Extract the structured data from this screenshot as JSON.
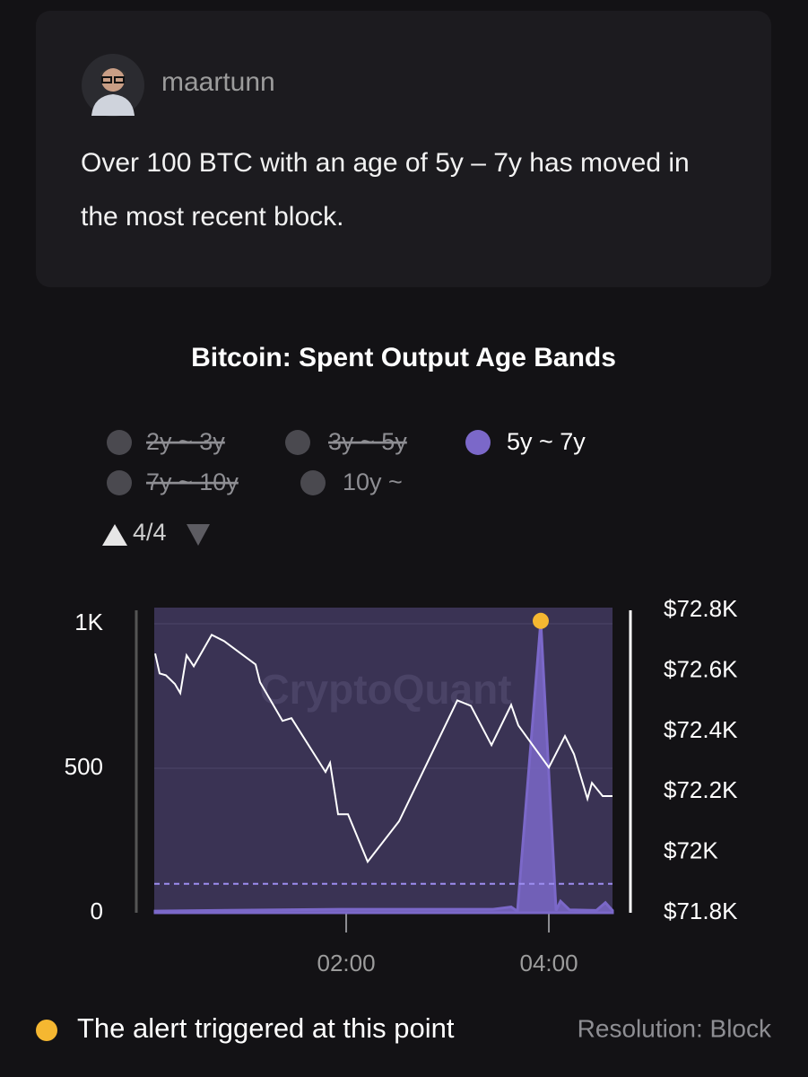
{
  "post": {
    "author": "maartunn",
    "text": "Over 100 BTC with an age of 5y – 7y has moved in the most recent block."
  },
  "chart_data": {
    "type": "area",
    "title": "Bitcoin: Spent Output Age Bands",
    "hidden_series": [
      "2y ~ 3y",
      "3y ~ 5y",
      "7y ~ 10y",
      "10y ~"
    ],
    "pager": "4/4",
    "watermark": "CryptoQuant",
    "series": [
      {
        "name": "5y ~ 7y",
        "color": "#7b68c9",
        "x": [
          0.115,
          1.947,
          3.451,
          3.628,
          3.69,
          3.92,
          4.071,
          4.115,
          4.204,
          4.469,
          4.558,
          4.628
        ],
        "values": [
          6,
          12,
          12,
          20,
          5,
          1010,
          8,
          40,
          10,
          8,
          35,
          8
        ]
      }
    ],
    "price_line": {
      "axis": "y2",
      "color": "#ffffff",
      "x": [
        0.115,
        0.159,
        0.221,
        0.31,
        0.363,
        0.425,
        0.496,
        0.673,
        0.796,
        1.106,
        1.15,
        1.372,
        1.46,
        1.796,
        1.841,
        1.92,
        2.018,
        2.212,
        2.522,
        3.097,
        3.23,
        3.434,
        3.628,
        3.699,
        4.0,
        4.159,
        4.248,
        4.381,
        4.425,
        4.531,
        4.628
      ],
      "values": [
        72658,
        72592,
        72586,
        72557,
        72527,
        72652,
        72616,
        72720,
        72699,
        72622,
        72563,
        72435,
        72444,
        72266,
        72296,
        72126,
        72126,
        71969,
        72103,
        72503,
        72485,
        72355,
        72488,
        72420,
        72281,
        72385,
        72325,
        72177,
        72230,
        72186,
        72186
      ]
    },
    "threshold": 100,
    "alert_point": {
      "x": 3.92,
      "value": 1010,
      "color": "#f5b731"
    },
    "xlim": [
      0.106,
      4.628
    ],
    "xticks": [
      {
        "value": 2,
        "label": "02:00"
      },
      {
        "value": 4,
        "label": "04:00"
      }
    ],
    "ylim": [
      0,
      1056
    ],
    "yticks": [
      0,
      500,
      {
        "value": 1000,
        "label": "1K"
      }
    ],
    "y2lim": [
      71800,
      72810
    ],
    "y2ticks": [
      {
        "value": 71800,
        "label": "$71.8K"
      },
      {
        "value": 72000,
        "label": "$72K"
      },
      {
        "value": 72200,
        "label": "$72.2K"
      },
      {
        "value": 72400,
        "label": "$72.4K"
      },
      {
        "value": 72600,
        "label": "$72.6K"
      },
      {
        "value": 72800,
        "label": "$72.8K"
      }
    ],
    "grid": true
  },
  "footer": {
    "alert_note": "The alert triggered at this point",
    "resolution": "Resolution: Block"
  }
}
